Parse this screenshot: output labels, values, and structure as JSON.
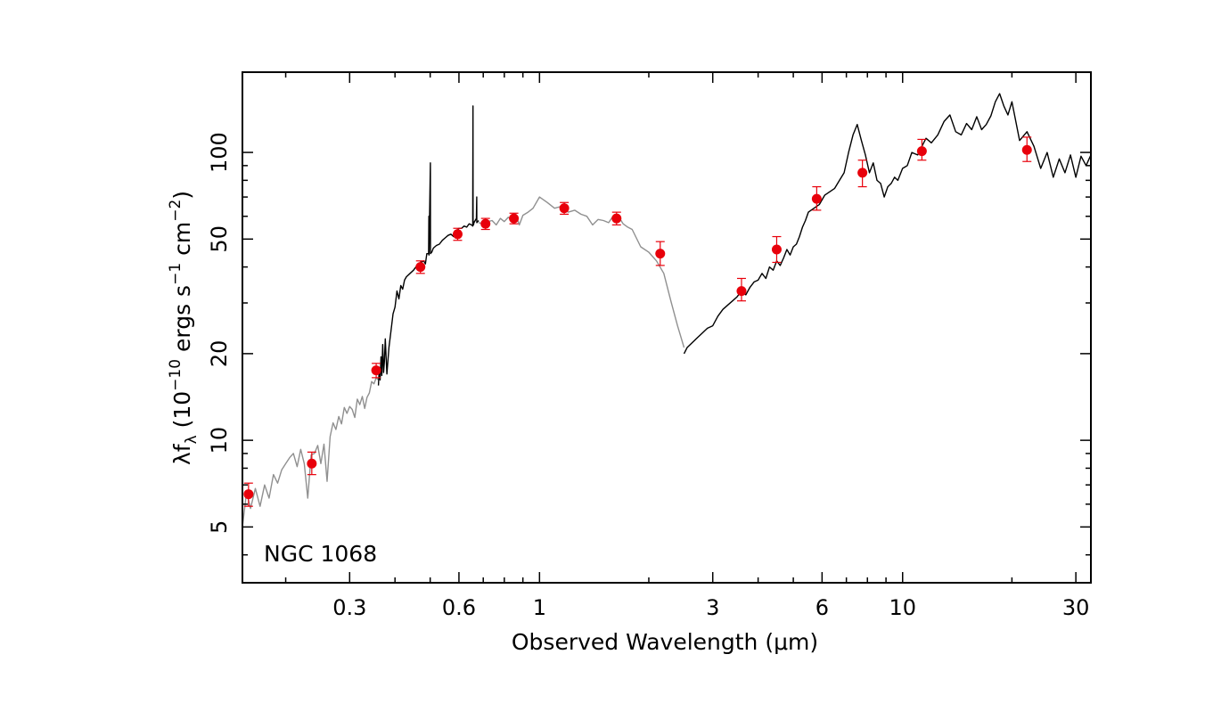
{
  "chart_data": {
    "type": "line",
    "title": "",
    "annotation": "NGC 1068",
    "xlabel": "Observed Wavelength (μm)",
    "ylabel": {
      "prefix": "λf",
      "sub": "λ",
      "body1": " (10",
      "exp1": "−10",
      "body2": " ergs s",
      "exp2": "−1",
      "body3": " cm",
      "exp3": "−2",
      "body4": ")"
    },
    "x_scale": "log",
    "y_scale": "log",
    "xlim": [
      0.152,
      33
    ],
    "ylim": [
      3.2,
      190
    ],
    "grid": false,
    "x_ticks": [
      {
        "value": 0.3,
        "label": "0.3"
      },
      {
        "value": 0.6,
        "label": "0.6"
      },
      {
        "value": 1,
        "label": "1"
      },
      {
        "value": 3,
        "label": "3"
      },
      {
        "value": 6,
        "label": "6"
      },
      {
        "value": 10,
        "label": "10"
      },
      {
        "value": 30,
        "label": "30"
      }
    ],
    "y_ticks": [
      {
        "value": 5,
        "label": "5"
      },
      {
        "value": 10,
        "label": "10"
      },
      {
        "value": 20,
        "label": "20"
      },
      {
        "value": 50,
        "label": "50"
      },
      {
        "value": 100,
        "label": "100"
      }
    ],
    "series": [
      {
        "style": "gray-line",
        "color": "#909090",
        "x": [
          0.152,
          0.156,
          0.16,
          0.165,
          0.17,
          0.175,
          0.18,
          0.185,
          0.19,
          0.195,
          0.2,
          0.205,
          0.21,
          0.215,
          0.22,
          0.225,
          0.23,
          0.235,
          0.24,
          0.245,
          0.25,
          0.255,
          0.26,
          0.265,
          0.27,
          0.275,
          0.28,
          0.285,
          0.29,
          0.295,
          0.3,
          0.305,
          0.31,
          0.315,
          0.32,
          0.325,
          0.33,
          0.335,
          0.34,
          0.345,
          0.35,
          0.355,
          0.36
        ],
        "y": [
          5.0,
          6.6,
          5.8,
          6.8,
          5.9,
          7.0,
          6.3,
          7.6,
          7.1,
          7.9,
          8.3,
          8.7,
          9.0,
          8.1,
          9.3,
          8.3,
          6.3,
          8.9,
          9.0,
          9.6,
          8.3,
          9.7,
          7.2,
          10.3,
          11.5,
          10.9,
          12.1,
          11.4,
          13.0,
          12.4,
          13.1,
          12.8,
          12.0,
          13.9,
          13.3,
          14.2,
          12.9,
          14.1,
          14.6,
          16.0,
          15.7,
          16.5,
          16.2
        ]
      },
      {
        "style": "black-line",
        "color": "#000000",
        "x": [
          0.36,
          0.362,
          0.364,
          0.366,
          0.368,
          0.37,
          0.372,
          0.374,
          0.376,
          0.378,
          0.38,
          0.385,
          0.39,
          0.395,
          0.4,
          0.405,
          0.41,
          0.415,
          0.42,
          0.425,
          0.43,
          0.44,
          0.45,
          0.46,
          0.47,
          0.48,
          0.485,
          0.4895,
          0.495,
          0.4959,
          0.496,
          0.5007,
          0.501,
          0.505,
          0.51,
          0.52,
          0.53,
          0.54,
          0.55,
          0.56,
          0.57,
          0.58,
          0.59,
          0.6,
          0.61,
          0.62,
          0.63,
          0.64,
          0.65,
          0.655,
          0.6548,
          0.656,
          0.6563,
          0.658,
          0.66,
          0.67,
          0.6716,
          0.672,
          0.68
        ],
        "y": [
          15.5,
          17.8,
          16.2,
          19.5,
          16.8,
          21.5,
          17.2,
          18.8,
          22.5,
          19.5,
          17.0,
          21.0,
          24.0,
          27.5,
          29.0,
          33.0,
          31.0,
          34.5,
          33.5,
          36.0,
          37.0,
          38.0,
          39.0,
          40.5,
          41.5,
          42.0,
          41.0,
          44.5,
          44.5,
          60.0,
          44.0,
          92.0,
          44.5,
          45.0,
          46.5,
          47.5,
          48.0,
          49.5,
          50.5,
          51.5,
          52.0,
          51.0,
          53.5,
          54.5,
          54.5,
          55.5,
          55.0,
          56.5,
          56.0,
          55.5,
          60.0,
          145.0,
          58.0,
          56.0,
          57.0,
          59.0,
          70.0,
          57.0,
          58.0
        ]
      },
      {
        "style": "gray-line",
        "color": "#909090",
        "x": [
          0.68,
          0.7,
          0.72,
          0.74,
          0.76,
          0.78,
          0.8,
          0.82,
          0.84,
          0.86,
          0.88,
          0.9,
          0.93,
          0.96,
          1.0,
          1.05,
          1.1,
          1.15,
          1.2,
          1.25,
          1.3,
          1.35,
          1.4,
          1.45,
          1.5,
          1.55,
          1.6,
          1.65,
          1.7,
          1.75,
          1.8,
          1.9,
          2.0,
          2.1,
          2.2,
          2.3,
          2.4,
          2.5
        ],
        "y": [
          57.0,
          56.5,
          57.5,
          58.0,
          56.0,
          59.0,
          57.5,
          59.5,
          58.5,
          61.0,
          56.0,
          60.5,
          62.0,
          64.0,
          70.0,
          67.0,
          64.0,
          65.0,
          62.0,
          63.0,
          61.0,
          60.0,
          56.0,
          58.5,
          58.0,
          57.0,
          60.5,
          60.0,
          56.5,
          55.0,
          54.0,
          47.0,
          45.0,
          42.0,
          38.0,
          30.5,
          25.0,
          21.0
        ]
      },
      {
        "style": "black-line",
        "color": "#000000",
        "x": [
          2.5,
          2.55,
          2.6,
          2.7,
          2.8,
          2.9,
          3.0,
          3.1,
          3.2,
          3.3,
          3.4,
          3.5,
          3.6,
          3.7,
          3.8,
          3.9,
          4.0,
          4.1,
          4.2,
          4.3,
          4.4,
          4.5,
          4.6,
          4.7,
          4.8,
          4.9,
          5.0,
          5.1,
          5.2,
          5.3,
          5.4,
          5.5,
          5.7,
          5.9,
          6.1,
          6.3,
          6.5,
          6.7,
          6.9,
          7.1,
          7.3,
          7.5,
          7.7,
          7.9,
          8.1,
          8.3,
          8.5,
          8.7,
          8.9,
          9.1,
          9.3,
          9.5,
          9.7,
          10.0,
          10.3,
          10.6,
          11.0,
          11.3,
          11.6,
          12.0,
          12.5,
          13.0,
          13.5,
          14.0,
          14.5,
          15.0,
          15.5,
          16.0,
          16.5,
          17.0,
          17.5,
          18.0,
          18.5,
          19.0,
          19.5,
          20.0,
          21.0,
          22.0,
          23.0,
          24.0,
          25.0,
          26.0,
          27.0,
          28.0,
          29.0,
          30.0,
          31.0,
          32.0,
          33.0
        ],
        "y": [
          20.0,
          21.0,
          21.5,
          22.5,
          23.5,
          24.5,
          25.0,
          27.0,
          28.5,
          29.5,
          30.5,
          31.5,
          33.0,
          32.0,
          34.0,
          35.5,
          36.0,
          38.0,
          36.5,
          40.0,
          39.0,
          42.0,
          40.5,
          43.0,
          46.0,
          44.0,
          47.0,
          48.0,
          51.0,
          55.0,
          58.0,
          62.0,
          64.0,
          66.0,
          71.0,
          73.0,
          75.0,
          80.0,
          85.0,
          100.0,
          115.0,
          125.0,
          110.0,
          98.0,
          85.0,
          92.0,
          80.0,
          78.0,
          70.0,
          76.0,
          78.0,
          82.0,
          80.0,
          88.0,
          90.0,
          100.0,
          98.0,
          105.0,
          112.0,
          108.0,
          115.0,
          128.0,
          135.0,
          118.0,
          115.0,
          126.0,
          120.0,
          133.0,
          120.0,
          125.0,
          134.0,
          150.0,
          160.0,
          145.0,
          135.0,
          150.0,
          110.0,
          118.0,
          105.0,
          88.0,
          100.0,
          82.0,
          95.0,
          85.0,
          98.0,
          82.0,
          97.0,
          90.0,
          98.0
        ]
      }
    ],
    "points": {
      "color": "#e8000b",
      "x": [
        0.158,
        0.236,
        0.355,
        0.47,
        0.595,
        0.71,
        0.85,
        1.17,
        1.63,
        2.15,
        3.6,
        4.5,
        5.8,
        7.75,
        11.3,
        22.0
      ],
      "y": [
        6.5,
        8.3,
        17.5,
        40.0,
        52.0,
        56.5,
        59.0,
        64.0,
        59.0,
        44.5,
        33.0,
        46.0,
        69.0,
        85.0,
        101.0,
        102.0
      ],
      "err_low": [
        0.6,
        0.7,
        1.0,
        2.0,
        2.5,
        2.5,
        2.5,
        3.0,
        3.0,
        4.0,
        2.5,
        4.5,
        6.0,
        9.0,
        7.0,
        9.0
      ],
      "err_high": [
        0.6,
        0.8,
        1.0,
        2.0,
        2.5,
        2.5,
        2.5,
        3.0,
        3.0,
        4.5,
        3.5,
        5.0,
        7.0,
        9.0,
        10.0,
        11.0
      ]
    }
  }
}
